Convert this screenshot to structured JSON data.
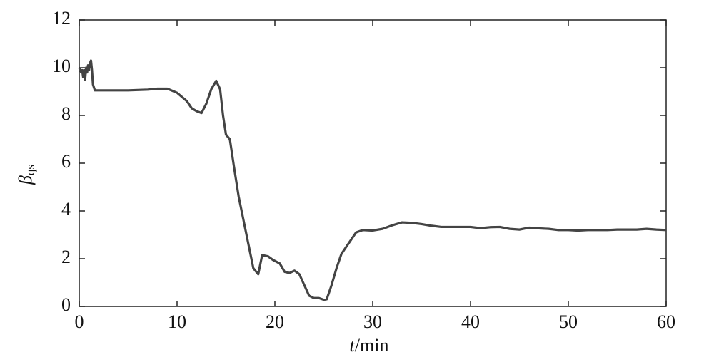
{
  "chart_data": {
    "type": "line",
    "xlabel": {
      "var": "t",
      "unit": "/min"
    },
    "ylabel": {
      "symbol": "β",
      "sub": "qs"
    },
    "xlim": [
      0,
      60
    ],
    "xticks": [
      0,
      10,
      20,
      30,
      40,
      50,
      60
    ],
    "ylim": [
      0,
      12
    ],
    "yticks": [
      0,
      2,
      4,
      6,
      8,
      10,
      12
    ],
    "grid": false,
    "series": [
      {
        "color": "#444444",
        "x": [
          0,
          0.2,
          0.3,
          0.4,
          0.5,
          0.6,
          0.7,
          0.8,
          0.9,
          1.0,
          1.1,
          1.2,
          1.3,
          1.4,
          1.6,
          3,
          5,
          7,
          8,
          9,
          10,
          11,
          11.5,
          12,
          12.5,
          13,
          13.5,
          14,
          14.4,
          14.7,
          15,
          15.4,
          15.8,
          16.3,
          16.8,
          17.3,
          17.8,
          18.3,
          18.7,
          19.3,
          19.8,
          20.5,
          21,
          21.5,
          22,
          22.5,
          23,
          23.5,
          24,
          24.5,
          25,
          25.3,
          25.8,
          26.3,
          26.8,
          27.3,
          27.8,
          28.3,
          29,
          30,
          31,
          32,
          33,
          34,
          35,
          36,
          37,
          38,
          40,
          41,
          42,
          43,
          44,
          45,
          46,
          47,
          48,
          49,
          50,
          51,
          52,
          53,
          54,
          55,
          56,
          57,
          58,
          59,
          60
        ],
        "values": [
          10.0,
          9.8,
          9.9,
          9.6,
          9.9,
          9.5,
          10.0,
          9.8,
          10.1,
          9.9,
          10.2,
          10.3,
          9.9,
          9.3,
          9.05,
          9.05,
          9.05,
          9.08,
          9.12,
          9.12,
          8.95,
          8.6,
          8.3,
          8.18,
          8.1,
          8.5,
          9.1,
          9.45,
          9.1,
          8.0,
          7.2,
          7.0,
          5.9,
          4.6,
          3.6,
          2.6,
          1.6,
          1.35,
          2.15,
          2.1,
          1.95,
          1.8,
          1.45,
          1.4,
          1.5,
          1.35,
          0.9,
          0.45,
          0.35,
          0.35,
          0.28,
          0.3,
          0.9,
          1.6,
          2.2,
          2.5,
          2.8,
          3.1,
          3.2,
          3.18,
          3.25,
          3.4,
          3.52,
          3.5,
          3.45,
          3.38,
          3.33,
          3.33,
          3.33,
          3.28,
          3.32,
          3.33,
          3.25,
          3.22,
          3.3,
          3.27,
          3.25,
          3.2,
          3.2,
          3.18,
          3.2,
          3.2,
          3.2,
          3.22,
          3.22,
          3.22,
          3.25,
          3.22,
          3.2
        ]
      }
    ]
  }
}
